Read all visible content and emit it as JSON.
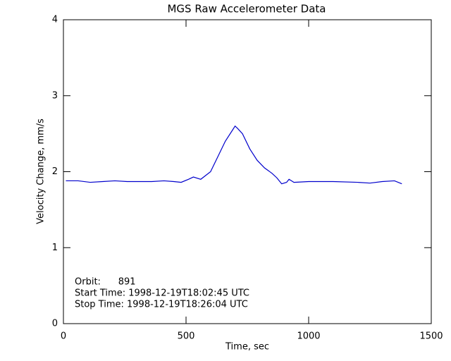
{
  "chart_data": {
    "type": "line",
    "title": "MGS Raw Accelerometer Data",
    "x_label": "Time, sec",
    "y_label": "Velocity Change, mm/s",
    "annotations": [
      "Orbit:      891",
      "Start Time: 1998-12-19T18:02:45 UTC",
      "Stop Time: 1998-12-19T18:26:04 UTC"
    ],
    "xlim": [
      0,
      1500
    ],
    "xticks": [
      0,
      500,
      1000,
      1500
    ],
    "ylim": [
      0,
      4
    ],
    "yticks": [
      0,
      1,
      2,
      3,
      4
    ],
    "series": [
      {
        "color": "#0000cc",
        "x": [
          10,
          60,
          110,
          160,
          210,
          260,
          310,
          360,
          410,
          450,
          480,
          510,
          530,
          560,
          600,
          630,
          660,
          690,
          700,
          710,
          730,
          760,
          790,
          820,
          850,
          870,
          890,
          910,
          920,
          940,
          1000,
          1100,
          1200,
          1250,
          1300,
          1350,
          1380
        ],
        "values": [
          1.88,
          1.88,
          1.86,
          1.87,
          1.88,
          1.87,
          1.87,
          1.87,
          1.88,
          1.87,
          1.86,
          1.9,
          1.93,
          1.9,
          2.0,
          2.2,
          2.4,
          2.55,
          2.6,
          2.57,
          2.5,
          2.3,
          2.15,
          2.05,
          1.98,
          1.92,
          1.84,
          1.86,
          1.9,
          1.86,
          1.87,
          1.87,
          1.86,
          1.85,
          1.87,
          1.88,
          1.84
        ]
      }
    ]
  }
}
